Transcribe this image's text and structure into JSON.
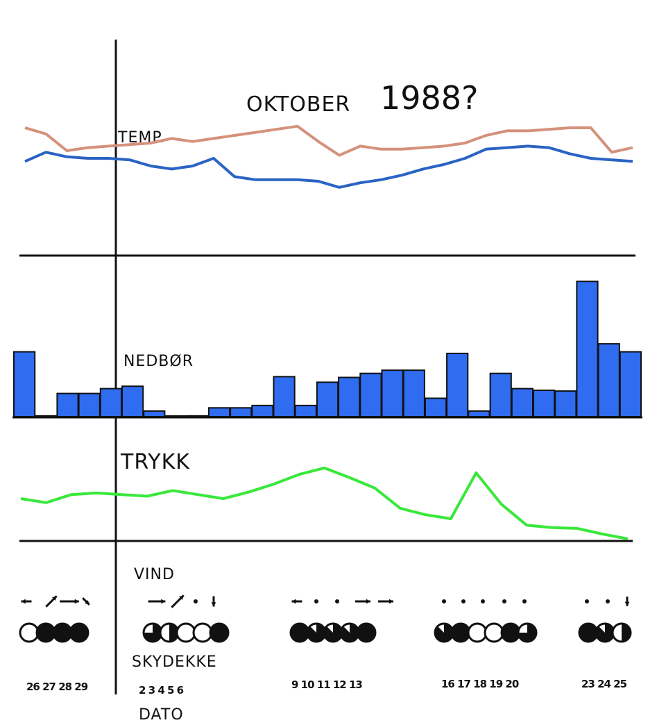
{
  "chart_data": {
    "type": "composite",
    "title": "OKTOBER",
    "title_year": "1988?",
    "colors": {
      "temp_high": "#d4917c",
      "temp_low": "#2a63c4",
      "precip": "#2f6cf0",
      "pressure": "#38e83a",
      "ink": "#111111"
    },
    "temp": {
      "label": "TEMP.",
      "series_high": [
        8.0,
        7.6,
        6.5,
        6.7,
        6.8,
        6.9,
        7.0,
        7.3,
        7.1,
        7.3,
        7.5,
        7.7,
        7.9,
        8.1,
        7.1,
        6.2,
        6.8,
        6.6,
        6.6,
        6.7,
        6.8,
        7.0,
        7.5,
        7.8,
        7.8,
        7.9,
        8.0,
        8.0,
        6.4,
        6.7
      ],
      "series_low": [
        5.8,
        6.4,
        6.1,
        6.0,
        6.0,
        5.9,
        5.5,
        5.3,
        5.5,
        6.0,
        4.8,
        4.6,
        4.6,
        4.6,
        4.5,
        4.1,
        4.4,
        4.6,
        4.9,
        5.3,
        5.6,
        6.0,
        6.6,
        6.7,
        6.8,
        6.7,
        6.3,
        6.0,
        5.9,
        5.8
      ],
      "ylim": [
        0,
        10
      ]
    },
    "precip": {
      "label": "NEDBØR",
      "values": [
        8.1,
        0.1,
        2.9,
        2.9,
        3.5,
        3.8,
        0.7,
        0.0,
        0.1,
        1.1,
        1.1,
        1.4,
        5.0,
        1.4,
        4.3,
        4.9,
        5.4,
        5.8,
        5.8,
        2.3,
        7.9,
        0.7,
        5.4,
        3.5,
        3.3,
        3.2,
        16.9,
        9.1,
        8.1
      ],
      "ylim": [
        0,
        17
      ]
    },
    "pressure": {
      "label": "TRYKK",
      "values": [
        5.0,
        4.5,
        5.5,
        5.7,
        5.5,
        5.3,
        6.0,
        5.5,
        5.0,
        5.8,
        6.8,
        8.0,
        8.8,
        7.6,
        6.3,
        3.8,
        3.0,
        2.5,
        8.2,
        4.3,
        1.7,
        1.4,
        1.3,
        0.6,
        0.0
      ],
      "ylim": [
        0,
        10
      ]
    },
    "wind": {
      "label": "VIND",
      "arrows": [
        {
          "dir": "W",
          "len": 0.5
        },
        {
          "dir": "NE",
          "len": 1
        },
        {
          "dir": "E",
          "len": 1.4
        },
        {
          "dir": "SE",
          "len": 0.4
        },
        {
          "dir": "E",
          "len": 1.2
        },
        {
          "dir": "NE",
          "len": 1.2
        },
        {
          "dir": "calm",
          "len": 0
        },
        {
          "dir": "S",
          "len": 0.5
        },
        {
          "dir": "W",
          "len": 0.5
        },
        {
          "dir": "calm",
          "len": 0
        },
        {
          "dir": "calm",
          "len": 0
        },
        {
          "dir": "E",
          "len": 1
        },
        {
          "dir": "E",
          "len": 1
        },
        {
          "dir": "calm",
          "len": 0
        },
        {
          "dir": "calm",
          "len": 0
        },
        {
          "dir": "calm",
          "len": 0
        },
        {
          "dir": "calm",
          "len": 0
        },
        {
          "dir": "calm",
          "len": 0
        },
        {
          "dir": "calm",
          "len": 0
        },
        {
          "dir": "calm",
          "len": 0
        },
        {
          "dir": "S",
          "len": 0.4
        }
      ]
    },
    "cloud": {
      "label": "SKYDEKKE",
      "octas_groups": [
        [
          0,
          8,
          8,
          8
        ],
        [
          6,
          4,
          0,
          0,
          8
        ],
        [
          8,
          7,
          7,
          7,
          8
        ],
        [
          7,
          8,
          0,
          0,
          8,
          6
        ],
        [
          8,
          7,
          4
        ]
      ]
    },
    "dates": {
      "label": "DATO",
      "groups": [
        "26 27 28 29",
        "2 3 4 5 6",
        "9 10 11 12 13",
        "16 17 18 19 20",
        "23 24 25"
      ]
    }
  }
}
